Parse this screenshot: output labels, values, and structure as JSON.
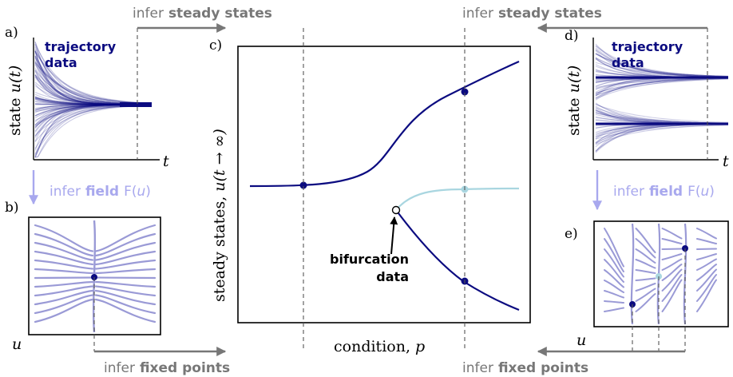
{
  "panels": {
    "a": {
      "tag": "a)",
      "overlay_line1": "trajectory",
      "overlay_line2": "data",
      "ylabel_text": "state",
      "ylabel_math": "u(t)",
      "xlabel": "t"
    },
    "b": {
      "tag": "b)",
      "corner_label": "u"
    },
    "c": {
      "tag": "c)",
      "ylabel_text": "steady states,",
      "ylabel_math": "u(t → ∞)",
      "xlabel_text": "condition,",
      "xlabel_math": "p",
      "annotation_line1": "bifurcation",
      "annotation_line2": "data"
    },
    "d": {
      "tag": "d)",
      "overlay_line1": "trajectory",
      "overlay_line2": "data",
      "ylabel_text": "state",
      "ylabel_math": "u(t)",
      "xlabel": "t"
    },
    "e": {
      "tag": "e)",
      "corner_label": "u"
    }
  },
  "arrows": {
    "top_left": {
      "prefix": "infer",
      "bold": "steady states"
    },
    "top_right": {
      "prefix": "infer",
      "bold": "steady states"
    },
    "mid_left": {
      "prefix": "infer",
      "bold": "field",
      "suffix": "F(",
      "var": "u",
      "close": ")"
    },
    "mid_right": {
      "prefix": "infer",
      "bold": "field",
      "suffix": "F(",
      "var": "u",
      "close": ")"
    },
    "bottom_left": {
      "prefix": "infer",
      "bold": "fixed points"
    },
    "bottom_right": {
      "prefix": "infer",
      "bold": "fixed points"
    }
  },
  "colors": {
    "navy": "#0b0b80",
    "light_blue": "#a9d6e0",
    "lavender": "#9a9ad6",
    "arrow_gray": "#777777",
    "lavender_arrow": "#a8a8ee"
  }
}
